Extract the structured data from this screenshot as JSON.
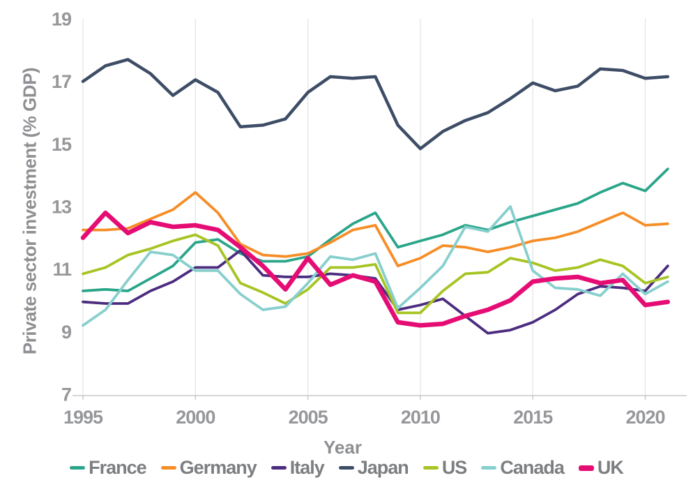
{
  "figure": {
    "y_axis_title": "Private sector investment (% GDP)",
    "x_axis_title": "Year"
  },
  "axis_colors": {
    "gridline": "#e4e4e4",
    "axis_line": "#c9c9c9",
    "tick_text": "#96979a"
  },
  "chart_data": {
    "type": "line",
    "title": "",
    "xlabel": "Year",
    "ylabel": "Private sector investment (% GDP)",
    "x": [
      1995,
      1996,
      1997,
      1998,
      1999,
      2000,
      2001,
      2002,
      2003,
      2004,
      2005,
      2006,
      2007,
      2008,
      2009,
      2010,
      2011,
      2012,
      2013,
      2014,
      2015,
      2016,
      2017,
      2018,
      2019,
      2020,
      2021
    ],
    "x_ticks": [
      1995,
      2000,
      2005,
      2010,
      2015,
      2020
    ],
    "y_ticks": [
      19,
      17,
      15,
      13,
      11,
      9,
      7
    ],
    "xlim": [
      1995,
      2021
    ],
    "ylim": [
      7,
      19
    ],
    "grid": "vertical-only",
    "legend_position": "bottom",
    "series": [
      {
        "name": "France",
        "color": "#2ba58a",
        "thick": false,
        "values": [
          10.3,
          10.35,
          10.3,
          10.7,
          11.1,
          11.85,
          11.95,
          11.5,
          11.25,
          11.25,
          11.4,
          11.95,
          12.45,
          12.8,
          11.7,
          11.9,
          12.1,
          12.4,
          12.25,
          12.5,
          12.7,
          12.9,
          13.1,
          13.45,
          13.75,
          13.5,
          14.2
        ]
      },
      {
        "name": "Germany",
        "color": "#f68d26",
        "thick": false,
        "values": [
          12.25,
          12.25,
          12.3,
          12.6,
          12.9,
          13.45,
          12.8,
          11.8,
          11.45,
          11.4,
          11.5,
          11.85,
          12.25,
          12.4,
          11.1,
          11.35,
          11.75,
          11.7,
          11.55,
          11.7,
          11.9,
          12.0,
          12.2,
          12.5,
          12.8,
          12.4,
          12.45
        ]
      },
      {
        "name": "Italy",
        "color": "#4c2c7f",
        "thick": false,
        "values": [
          9.95,
          9.9,
          9.9,
          10.3,
          10.6,
          11.05,
          11.05,
          11.6,
          10.8,
          10.75,
          10.75,
          10.85,
          10.8,
          10.7,
          9.7,
          9.85,
          10.05,
          9.5,
          8.95,
          9.05,
          9.3,
          9.7,
          10.2,
          10.45,
          10.4,
          10.3,
          11.1
        ]
      },
      {
        "name": "Japan",
        "color": "#3e4d66",
        "thick": false,
        "values": [
          17.0,
          17.5,
          17.7,
          17.25,
          16.55,
          17.05,
          16.65,
          15.55,
          15.6,
          15.8,
          16.65,
          17.15,
          17.1,
          17.15,
          15.6,
          14.85,
          15.4,
          15.75,
          16.0,
          16.45,
          16.95,
          16.7,
          16.85,
          17.4,
          17.35,
          17.1,
          17.15
        ]
      },
      {
        "name": "US",
        "color": "#a6c423",
        "thick": false,
        "values": [
          10.85,
          11.05,
          11.45,
          11.65,
          11.9,
          12.1,
          11.75,
          10.55,
          10.25,
          9.9,
          10.35,
          11.05,
          11.05,
          11.15,
          9.6,
          9.6,
          10.3,
          10.85,
          10.9,
          11.35,
          11.2,
          10.95,
          11.05,
          11.3,
          11.1,
          10.55,
          10.75
        ]
      },
      {
        "name": "Canada",
        "color": "#87cfcd",
        "thick": false,
        "values": [
          9.2,
          9.7,
          10.65,
          11.55,
          11.45,
          10.95,
          10.95,
          10.2,
          9.7,
          9.8,
          10.55,
          11.4,
          11.3,
          11.5,
          9.75,
          10.4,
          11.1,
          12.35,
          12.2,
          13.0,
          10.95,
          10.4,
          10.35,
          10.15,
          10.85,
          10.2,
          10.6
        ]
      },
      {
        "name": "UK",
        "color": "#e50c74",
        "thick": true,
        "values": [
          12.0,
          12.8,
          12.15,
          12.5,
          12.35,
          12.4,
          12.25,
          11.7,
          11.1,
          10.35,
          11.35,
          10.5,
          10.8,
          10.6,
          9.3,
          9.2,
          9.25,
          9.5,
          9.7,
          10.0,
          10.6,
          10.7,
          10.75,
          10.55,
          10.65,
          9.85,
          9.95
        ]
      }
    ]
  }
}
